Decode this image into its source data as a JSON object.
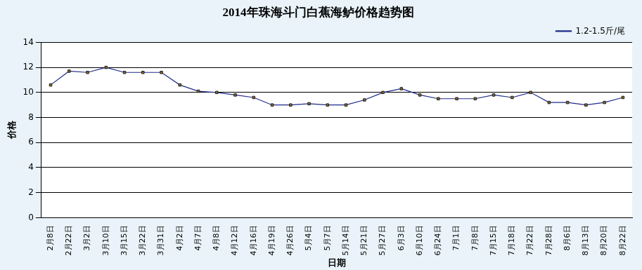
{
  "chart_data": {
    "type": "line",
    "title": "2014年珠海斗门白蕉海鲈价格趋势图",
    "x_label": "日期",
    "y_label": "价格",
    "categories": [
      "2月8日",
      "2月22日",
      "3月2日",
      "3月10日",
      "3月15日",
      "3月22日",
      "3月31日",
      "4月2日",
      "4月7日",
      "4月8日",
      "4月12日",
      "4月16日",
      "4月19日",
      "4月26日",
      "5月4日",
      "5月7日",
      "5月14日",
      "5月21日",
      "5月27日",
      "6月3日",
      "6月10日",
      "6月24日",
      "7月1日",
      "7月8日",
      "7月15日",
      "7月18日",
      "7月22日",
      "7月28日",
      "8月6日",
      "8月13日",
      "8月20日",
      "8月22日"
    ],
    "series": [
      {
        "name": "1.2-1.5斤/尾",
        "color": "#1f2a8c",
        "marker": "square",
        "line_style": "solid",
        "values": [
          10.6,
          11.7,
          11.6,
          12.0,
          11.6,
          11.6,
          11.6,
          10.6,
          10.1,
          10.0,
          9.8,
          9.6,
          9.0,
          9.0,
          9.1,
          9.0,
          9.0,
          9.4,
          10.0,
          10.3,
          9.8,
          9.5,
          9.5,
          9.5,
          9.8,
          9.6,
          10.0,
          9.2,
          9.2,
          9.0,
          9.2,
          9.6
        ]
      }
    ],
    "ylim": [
      0,
      14
    ],
    "yticks": [
      0,
      2,
      4,
      6,
      8,
      10,
      12,
      14
    ],
    "grid": true,
    "legend": "top-right"
  }
}
